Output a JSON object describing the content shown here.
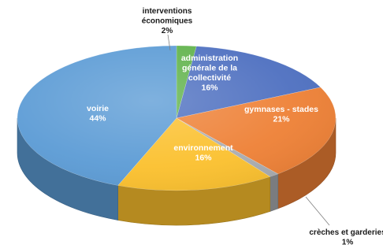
{
  "chart_data": {
    "type": "pie",
    "style": "3d",
    "slices": [
      {
        "label": [
          "interventions",
          "économiques"
        ],
        "value": 2,
        "value_label": "2%",
        "color": "#5fb24a"
      },
      {
        "label": [
          "administration",
          "générale de la",
          "collectivité"
        ],
        "value": 16,
        "value_label": "16%",
        "color": "#4d6fc0"
      },
      {
        "label": [
          "gymnases - stades"
        ],
        "value": 21,
        "value_label": "21%",
        "color": "#ee8035"
      },
      {
        "label": [
          "crèches et garderies"
        ],
        "value": 1,
        "value_label": "1%",
        "color": "#a9acb0"
      },
      {
        "label": [
          "environnement"
        ],
        "value": 16,
        "value_label": "16%",
        "color": "#fbc02d"
      },
      {
        "label": [
          "voirie"
        ],
        "value": 44,
        "value_label": "44%",
        "color": "#5b9bd5"
      }
    ]
  }
}
